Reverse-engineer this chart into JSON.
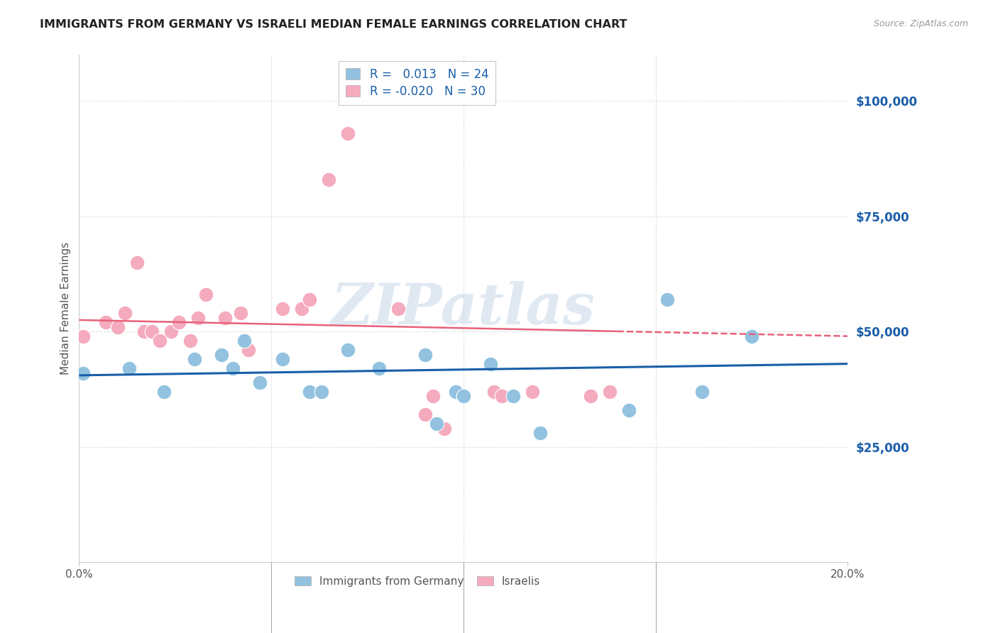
{
  "title": "IMMIGRANTS FROM GERMANY VS ISRAELI MEDIAN FEMALE EARNINGS CORRELATION CHART",
  "source": "Source: ZipAtlas.com",
  "ylabel": "Median Female Earnings",
  "xlim": [
    0.0,
    0.2
  ],
  "ylim": [
    0,
    110000
  ],
  "yticks": [
    25000,
    50000,
    75000,
    100000
  ],
  "ytick_labels": [
    "$25,000",
    "$50,000",
    "$75,000",
    "$100,000"
  ],
  "xticks": [
    0.0,
    0.05,
    0.1,
    0.15,
    0.2
  ],
  "xtick_labels": [
    "0.0%",
    "",
    "",
    "",
    "20.0%"
  ],
  "blue_color": "#92C2E0",
  "pink_color": "#F5ABBE",
  "blue_line_color": "#1A5EA8",
  "pink_line_color": "#E8607A",
  "legend_R_blue": "0.013",
  "legend_N_blue": "24",
  "legend_R_pink": "-0.020",
  "legend_N_pink": "30",
  "legend_label_blue": "Immigrants from Germany",
  "legend_label_pink": "Israelis",
  "watermark": "ZIPatlas",
  "blue_x": [
    0.001,
    0.013,
    0.022,
    0.03,
    0.037,
    0.04,
    0.043,
    0.047,
    0.053,
    0.06,
    0.063,
    0.07,
    0.078,
    0.09,
    0.093,
    0.098,
    0.1,
    0.107,
    0.113,
    0.12,
    0.143,
    0.153,
    0.162,
    0.175
  ],
  "blue_y": [
    41000,
    42000,
    37000,
    44000,
    45000,
    42000,
    48000,
    39000,
    44000,
    37000,
    37000,
    46000,
    42000,
    45000,
    30000,
    37000,
    36000,
    43000,
    36000,
    28000,
    33000,
    57000,
    37000,
    49000
  ],
  "pink_x": [
    0.001,
    0.007,
    0.01,
    0.012,
    0.015,
    0.017,
    0.019,
    0.021,
    0.024,
    0.026,
    0.029,
    0.031,
    0.033,
    0.038,
    0.042,
    0.044,
    0.053,
    0.058,
    0.06,
    0.065,
    0.07,
    0.083,
    0.09,
    0.092,
    0.095,
    0.108,
    0.11,
    0.118,
    0.133,
    0.138
  ],
  "pink_y": [
    49000,
    52000,
    51000,
    54000,
    65000,
    50000,
    50000,
    48000,
    50000,
    52000,
    48000,
    53000,
    58000,
    53000,
    54000,
    46000,
    55000,
    55000,
    57000,
    83000,
    93000,
    55000,
    32000,
    36000,
    29000,
    37000,
    36000,
    37000,
    36000,
    37000
  ],
  "background_color": "#FFFFFF",
  "grid_color": "#CCCCCC",
  "title_color": "#222222",
  "axis_label_color": "#555555",
  "ytick_color": "#1A5EA8",
  "xtick_color": "#555555",
  "blue_trend_y0": 40500,
  "blue_trend_y1": 43000,
  "pink_trend_y0": 52500,
  "pink_trend_y1": 49000
}
